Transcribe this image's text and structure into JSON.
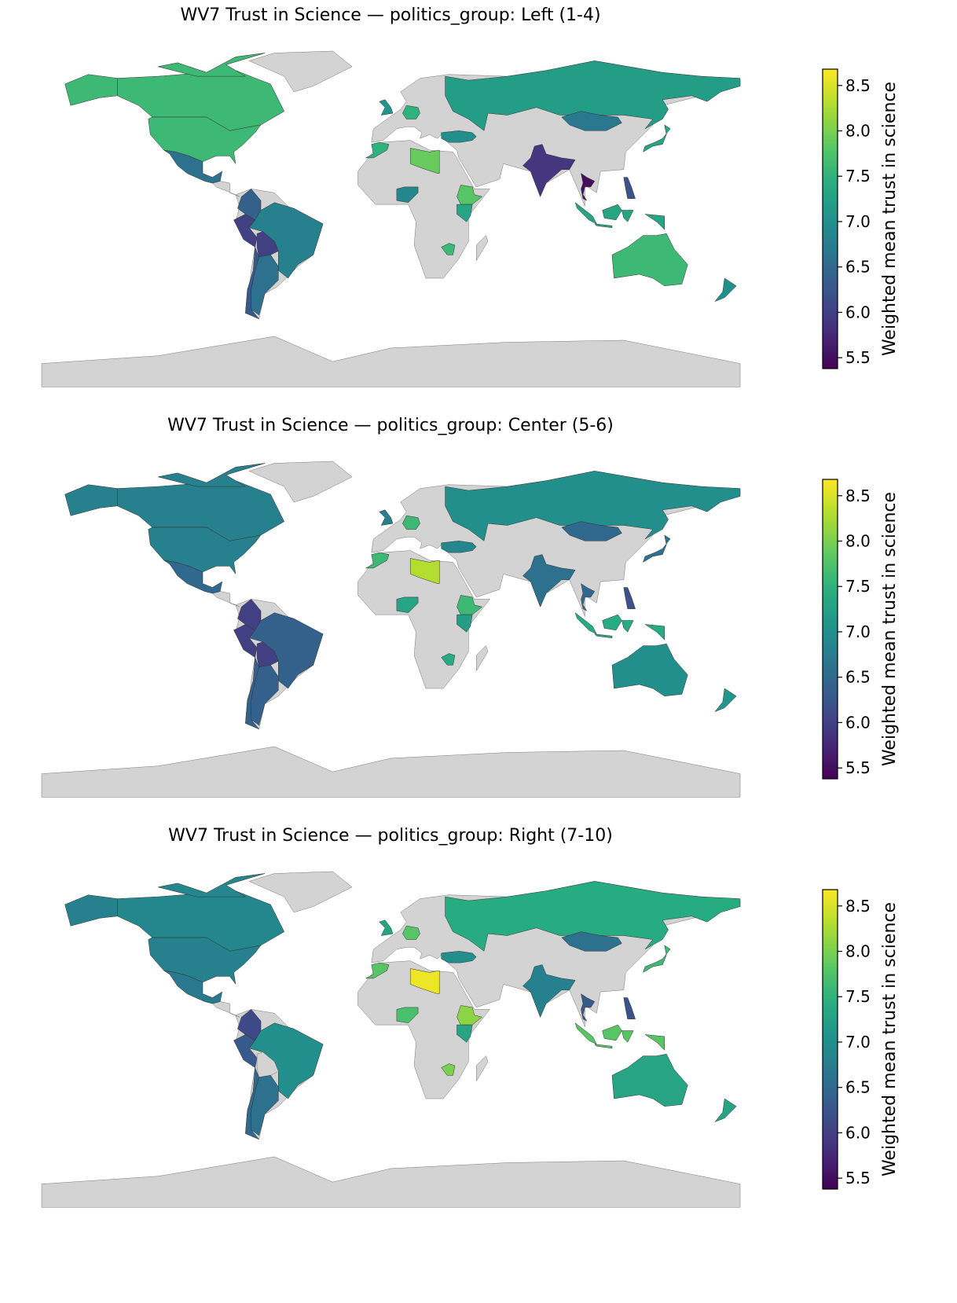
{
  "chart_data": [
    {
      "type": "choropleth",
      "title": "WV7 Trust in Science — politics_group: Left (1-4)",
      "values": [
        7.6,
        7.6,
        6.6,
        6.4,
        6.0,
        6.8,
        6.0,
        6.6,
        6.3,
        7.2,
        6.7,
        5.9,
        5.5,
        7.3,
        6.2,
        7.3,
        7.6,
        7.0,
        7.9,
        7.8,
        6.9,
        7.3,
        7.6,
        7.0,
        7.5,
        7.1,
        7.5
      ],
      "colormap": "viridis",
      "missing_color": "#d3d3d3",
      "clim": [
        5.38,
        8.68
      ],
      "cticks": [
        5.5,
        {
          "value": 6,
          "label": "6.0"
        },
        6.5,
        {
          "value": 7,
          "label": "7.0"
        },
        7.5,
        {
          "value": 8,
          "label": "8.0"
        },
        8.5
      ],
      "colorbar_label": "Weighted mean trust in science"
    },
    {
      "type": "choropleth",
      "title": "WV7 Trust in Science — politics_group: Center (5-6)",
      "values": [
        6.8,
        6.8,
        6.5,
        6.0,
        6.0,
        6.4,
        6.0,
        6.4,
        6.4,
        7.0,
        6.5,
        6.6,
        6.5,
        7.4,
        6.2,
        6.6,
        7.0,
        7.1,
        8.3,
        7.6,
        7.3,
        7.2,
        7.4,
        6.9,
        7.6,
        6.8,
        7.6
      ],
      "colormap": "viridis",
      "missing_color": "#d3d3d3",
      "clim": [
        5.38,
        8.68
      ],
      "cticks": [
        5.5,
        {
          "value": 6,
          "label": "6.0"
        },
        6.5,
        {
          "value": 7,
          "label": "7.0"
        },
        7.5,
        {
          "value": 8,
          "label": "8.0"
        },
        8.5
      ],
      "colorbar_label": "Weighted mean trust in science"
    },
    {
      "type": "choropleth",
      "title": "WV7 Trust in Science — politics_group: Right (7-10)",
      "values": [
        6.9,
        6.8,
        6.7,
        6.1,
        6.3,
        7.0,
        null,
        6.6,
        6.5,
        7.4,
        6.6,
        6.8,
        6.3,
        7.8,
        6.2,
        7.6,
        7.3,
        7.3,
        8.6,
        8.1,
        7.7,
        7.3,
        8.0,
        7.0,
        7.8,
        7.3,
        7.8
      ],
      "colormap": "viridis",
      "missing_color": "#d3d3d3",
      "clim": [
        5.38,
        8.68
      ],
      "cticks": [
        5.5,
        {
          "value": 6,
          "label": "6.0"
        },
        6.5,
        {
          "value": 7,
          "label": "7.0"
        },
        7.5,
        {
          "value": 8,
          "label": "8.0"
        },
        8.5
      ],
      "colorbar_label": "Weighted mean trust in science"
    }
  ]
}
